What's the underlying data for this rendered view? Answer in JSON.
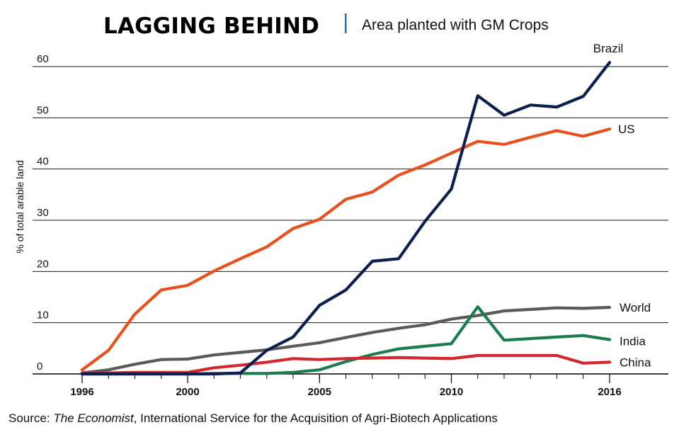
{
  "chart_data": {
    "type": "line",
    "title": "LAGGING BEHIND",
    "subtitle": "Area planted with GM Crops",
    "ylabel": "% of total arable land",
    "xlabel": "",
    "ylim": [
      0,
      60
    ],
    "xlim": [
      1996,
      2016
    ],
    "yticks": [
      "0",
      "10",
      "20",
      "30",
      "40",
      "50",
      "60"
    ],
    "xticks": [
      "1996",
      "2000",
      "2005",
      "2010",
      "2016"
    ],
    "grid": true,
    "x": [
      1996,
      1997,
      1998,
      1999,
      2000,
      2001,
      2002,
      2003,
      2004,
      2005,
      2006,
      2007,
      2008,
      2009,
      2010,
      2011,
      2012,
      2013,
      2014,
      2015,
      2016
    ],
    "series": [
      {
        "name": "Brazil",
        "color": "#0d1f4f",
        "values": [
          0,
          0,
          0,
          0,
          0,
          0,
          0.2,
          4.6,
          7.2,
          13.4,
          16.4,
          22.0,
          22.5,
          29.8,
          36.1,
          54.3,
          50.5,
          52.5,
          52.1,
          54.2,
          60.8
        ]
      },
      {
        "name": "US",
        "color": "#e8501e",
        "values": [
          0.8,
          4.6,
          11.7,
          16.4,
          17.3,
          20.1,
          22.5,
          24.8,
          28.4,
          30.2,
          34.1,
          35.5,
          38.8,
          40.8,
          43.1,
          45.4,
          44.8,
          46.2,
          47.5,
          46.4,
          47.8
        ]
      },
      {
        "name": "World",
        "color": "#5a5a5a",
        "values": [
          0.2,
          0.8,
          1.9,
          2.8,
          2.9,
          3.7,
          4.2,
          4.7,
          5.4,
          6.1,
          7.1,
          8.1,
          8.9,
          9.6,
          10.7,
          11.4,
          12.3,
          12.6,
          12.9,
          12.8,
          13.0
        ]
      },
      {
        "name": "India",
        "color": "#1b7c4e",
        "values": [
          0,
          0,
          0,
          0,
          0,
          0.1,
          0.1,
          0.1,
          0.3,
          0.8,
          2.4,
          3.8,
          4.9,
          5.4,
          5.9,
          13.1,
          6.6,
          6.9,
          7.2,
          7.5,
          6.7
        ]
      },
      {
        "name": "China",
        "color": "#d4262e",
        "values": [
          0.2,
          0.2,
          0.3,
          0.3,
          0.3,
          1.2,
          1.7,
          2.3,
          3.0,
          2.8,
          3.0,
          3.1,
          3.2,
          3.1,
          3.0,
          3.6,
          3.6,
          3.6,
          3.6,
          2.1,
          2.3
        ]
      }
    ],
    "source_label": "Source: ",
    "source_publication": "The Economist",
    "source_rest": ", International Service for the Acquisition of Agri-Biotech Applications"
  }
}
